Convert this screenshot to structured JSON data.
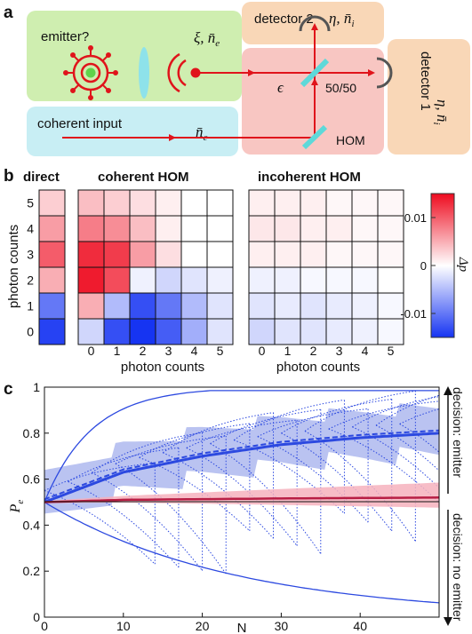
{
  "panel_labels": {
    "a": "a",
    "b": "b",
    "c": "c"
  },
  "setup": {
    "emitter_label": "emitter?",
    "emitter_param": "ξ, n̄",
    "emitter_param_sub": "e",
    "coherent_label": "coherent input",
    "coherent_param": "n̄",
    "coherent_param_sub": "c",
    "detector2_label": "detector 2",
    "detector1_label": "detector 1",
    "detector_param": "η, n̄",
    "detector_param_sub": "i",
    "splitter_label": "50/50",
    "epsilon_label": "ϵ",
    "hom_label": "HOM",
    "colors": {
      "emitter_box": "#cfeeb0",
      "coherent_box": "#c8eef4",
      "hom_box": "#f8c6c2",
      "detector_box": "#f9d7b7",
      "beam": "#e0141b",
      "splitter": "#5dd9d9",
      "lens": "#8ee2ea",
      "emitter_core": "#5fd24a"
    }
  },
  "heatmaps": {
    "direct_title": "direct",
    "coherent_title": "coherent HOM",
    "incoherent_title": "incoherent HOM",
    "y_axis_label": "photon counts",
    "x_axis_label": "photon counts",
    "ticks": [
      "0",
      "1",
      "2",
      "3",
      "4",
      "5"
    ],
    "colorbar_label": "Δp",
    "colorbar_ticks": [
      "0.01",
      "0",
      "-0.01"
    ],
    "colorbar_range": [
      -0.015,
      0.015
    ],
    "direct_values": [
      -0.014,
      -0.01,
      0.005,
      0.01,
      0.006,
      0.003
    ],
    "coherent_values": [
      [
        -0.003,
        -0.013,
        -0.015,
        -0.012,
        -0.006,
        -0.002
      ],
      [
        0.005,
        -0.005,
        -0.013,
        -0.01,
        -0.005,
        -0.002
      ],
      [
        0.014,
        0.011,
        -0.001,
        -0.003,
        -0.002,
        -0.001
      ],
      [
        0.013,
        0.012,
        0.006,
        0.002,
        0.0,
        0.0
      ],
      [
        0.008,
        0.007,
        0.004,
        0.001,
        0.0,
        0.0
      ],
      [
        0.004,
        0.003,
        0.002,
        0.001,
        0.0,
        0.0
      ]
    ],
    "incoherent_values": [
      [
        -0.003,
        -0.002,
        -0.002,
        -0.0015,
        -0.001,
        -0.0005
      ],
      [
        -0.002,
        -0.0015,
        -0.002,
        -0.0015,
        -0.001,
        -0.0005
      ],
      [
        -0.001,
        -0.001,
        -0.0005,
        -0.0005,
        -0.0005,
        0.0
      ],
      [
        0.001,
        0.001,
        0.001,
        0.0005,
        0.0005,
        0.0005
      ],
      [
        0.0015,
        0.0015,
        0.001,
        0.001,
        0.0005,
        0.0005
      ],
      [
        0.001,
        0.001,
        0.001,
        0.0005,
        0.0005,
        0.0005
      ]
    ]
  },
  "chart_data": {
    "type": "line",
    "xlabel": "N",
    "ylabel": "P",
    "ylabel_sub": "e",
    "xlim": [
      0,
      50
    ],
    "ylim": [
      0,
      1
    ],
    "xticks": [
      "0",
      "10",
      "20",
      "30",
      "40"
    ],
    "yticks": [
      "0",
      "0.2",
      "0.4",
      "0.6",
      "0.8",
      "1"
    ],
    "right_label_top": "decision: emitter",
    "right_label_bottom": "decision: no emitter",
    "colors": {
      "blue": "#2c49e0",
      "blue_band": "#aeb8ef",
      "red": "#b81e44",
      "red_band": "#f6b2bd"
    },
    "series": [
      {
        "x": [
          0,
          10,
          20,
          30,
          40,
          50
        ],
        "values": [
          0.5,
          0.63,
          0.7,
          0.75,
          0.78,
          0.8
        ]
      },
      {
        "x": [
          0,
          10,
          20,
          30,
          40,
          50
        ],
        "values": [
          0.5,
          0.51,
          0.513,
          0.516,
          0.518,
          0.52
        ]
      }
    ]
  }
}
